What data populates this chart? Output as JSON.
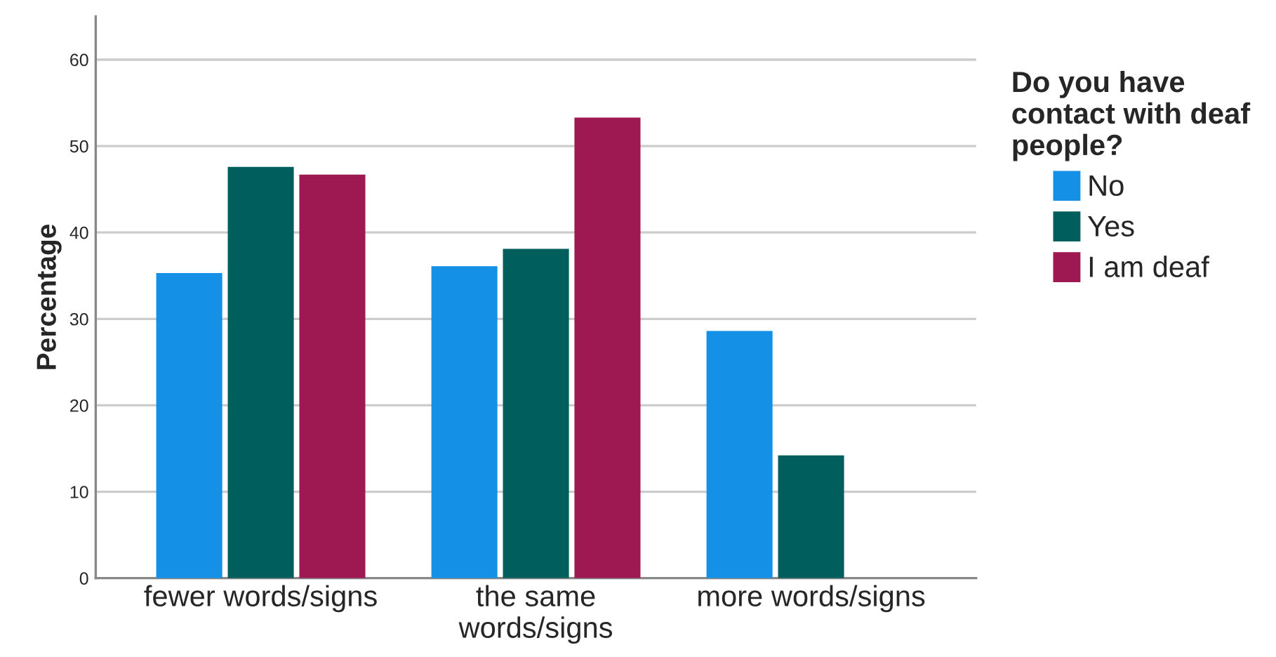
{
  "chart_data": {
    "type": "bar",
    "ylabel": "Percentage",
    "legend_title": "Do you have\ncontact with deaf\npeople?",
    "categories": [
      "fewer words/signs",
      "the same\nwords/signs",
      "more words/signs"
    ],
    "series": [
      {
        "name": "No",
        "color": "#1491e6",
        "values": [
          35.3,
          36.1,
          28.6
        ]
      },
      {
        "name": "Yes",
        "color": "#005f5d",
        "values": [
          47.6,
          38.1,
          14.2
        ]
      },
      {
        "name": "I am deaf",
        "color": "#9e1951",
        "values": [
          46.7,
          53.3,
          null
        ]
      }
    ],
    "ylim": [
      0,
      65
    ],
    "yticks": [
      0,
      10,
      20,
      30,
      40,
      50,
      60
    ],
    "grid": "y",
    "legend": "right"
  }
}
